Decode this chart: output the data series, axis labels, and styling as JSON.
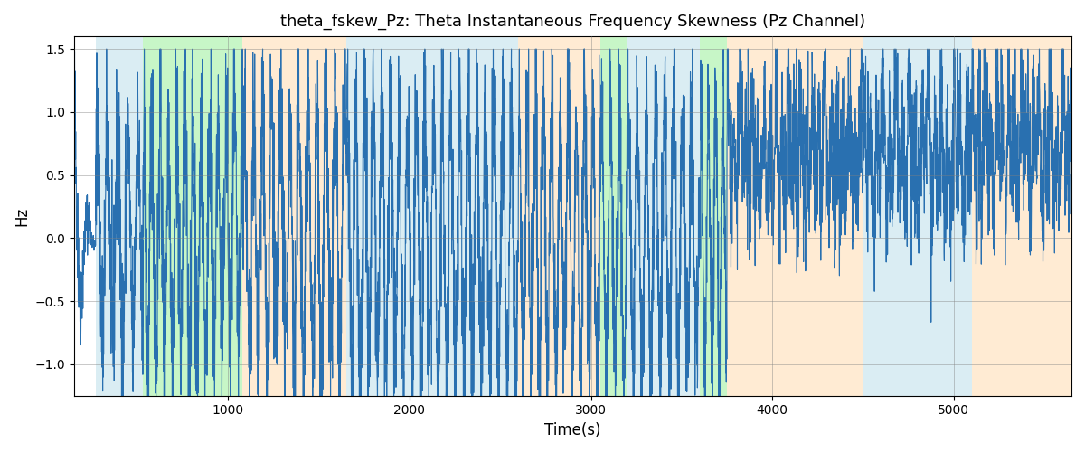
{
  "title": "theta_fskew_Pz: Theta Instantaneous Frequency Skewness (Pz Channel)",
  "xlabel": "Time(s)",
  "ylabel": "Hz",
  "ylim": [
    -1.25,
    1.6
  ],
  "xlim": [
    150,
    5650
  ],
  "line_color": "#2970b0",
  "line_width": 0.8,
  "bg_regions": [
    {
      "xmin": 270,
      "xmax": 530,
      "color": "#add8e6",
      "alpha": 0.45
    },
    {
      "xmin": 530,
      "xmax": 1080,
      "color": "#90ee90",
      "alpha": 0.5
    },
    {
      "xmin": 1080,
      "xmax": 1650,
      "color": "#ffd8a8",
      "alpha": 0.5
    },
    {
      "xmin": 1650,
      "xmax": 2600,
      "color": "#add8e6",
      "alpha": 0.45
    },
    {
      "xmin": 2600,
      "xmax": 3050,
      "color": "#ffd8a8",
      "alpha": 0.5
    },
    {
      "xmin": 3050,
      "xmax": 3200,
      "color": "#90ee90",
      "alpha": 0.5
    },
    {
      "xmin": 3200,
      "xmax": 3600,
      "color": "#add8e6",
      "alpha": 0.45
    },
    {
      "xmin": 3600,
      "xmax": 3750,
      "color": "#90ee90",
      "alpha": 0.5
    },
    {
      "xmin": 3750,
      "xmax": 4500,
      "color": "#ffd8a8",
      "alpha": 0.5
    },
    {
      "xmin": 4500,
      "xmax": 5100,
      "color": "#add8e6",
      "alpha": 0.45
    },
    {
      "xmin": 5100,
      "xmax": 5650,
      "color": "#ffd8a8",
      "alpha": 0.5
    }
  ],
  "seed": 42,
  "x_start": 150,
  "x_end": 5650,
  "n_points": 5500
}
